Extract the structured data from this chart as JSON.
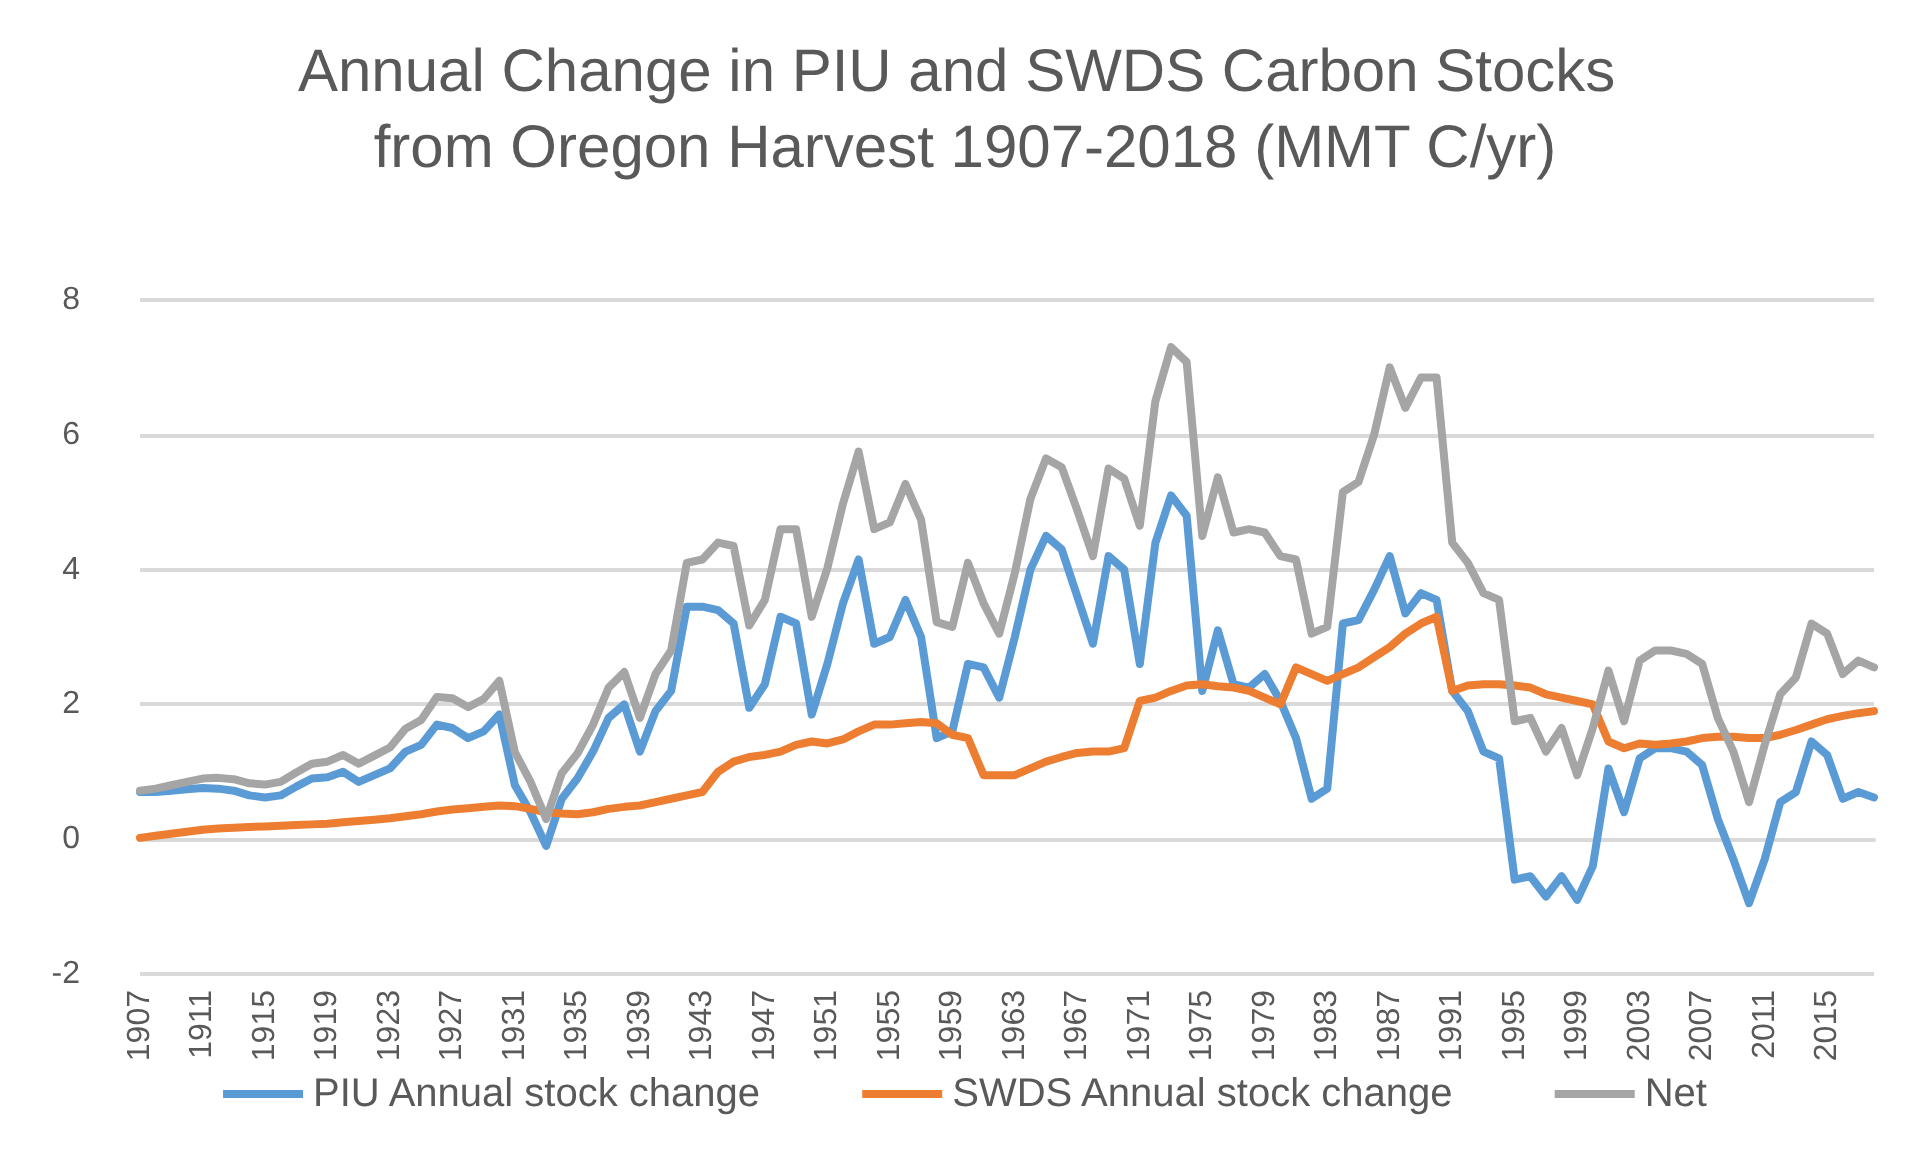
{
  "chart_data": {
    "type": "line",
    "title": "Annual Change in PIU and SWDS Carbon Stocks from Oregon Harvest 1907-2018 (MMT C/yr)",
    "categories": [
      "1907",
      null,
      null,
      null,
      "1911",
      null,
      null,
      null,
      "1915",
      null,
      null,
      null,
      "1919",
      null,
      null,
      null,
      "1923",
      null,
      null,
      null,
      "1927",
      null,
      null,
      null,
      "1931",
      null,
      null,
      null,
      "1935",
      null,
      null,
      null,
      "1939",
      null,
      null,
      null,
      "1943",
      null,
      null,
      null,
      "1947",
      null,
      null,
      null,
      "1951",
      null,
      null,
      null,
      "1955",
      null,
      null,
      null,
      "1959",
      null,
      null,
      null,
      "1963",
      null,
      null,
      null,
      "1967",
      null,
      null,
      null,
      "1971",
      null,
      null,
      null,
      "1975",
      null,
      null,
      null,
      "1979",
      null,
      null,
      null,
      "1983",
      null,
      null,
      null,
      "1987",
      null,
      null,
      null,
      "1991",
      null,
      null,
      null,
      "1995",
      null,
      null,
      null,
      "1999",
      null,
      null,
      null,
      "2003",
      null,
      null,
      null,
      "2007",
      null,
      null,
      null,
      "2011",
      null,
      null,
      null,
      "2015",
      null,
      null,
      null
    ],
    "series": [
      {
        "name": "PIU Annual stock change",
        "color": "#5b9bd5",
        "values": [
          0.7,
          0.7,
          0.72,
          0.74,
          0.76,
          0.75,
          0.72,
          0.65,
          0.62,
          0.65,
          0.78,
          0.9,
          0.92,
          1.0,
          0.85,
          0.95,
          1.05,
          1.3,
          1.4,
          1.7,
          1.65,
          1.5,
          1.6,
          1.85,
          0.8,
          0.4,
          -0.1,
          0.6,
          0.9,
          1.3,
          1.8,
          2.0,
          1.3,
          1.9,
          2.2,
          3.45,
          3.45,
          3.4,
          3.2,
          1.95,
          2.3,
          3.3,
          3.2,
          1.85,
          2.6,
          3.5,
          4.15,
          2.9,
          3.0,
          3.55,
          3.0,
          1.5,
          1.6,
          2.6,
          2.55,
          2.1,
          3.0,
          4.0,
          4.5,
          4.3,
          3.6,
          2.9,
          4.2,
          4.0,
          2.6,
          4.4,
          5.1,
          4.8,
          2.2,
          3.1,
          2.3,
          2.25,
          2.45,
          2.05,
          1.5,
          0.6,
          0.75,
          3.2,
          3.25,
          3.7,
          4.2,
          3.35,
          3.65,
          3.55,
          2.2,
          1.9,
          1.3,
          1.2,
          -0.6,
          -0.55,
          -0.85,
          -0.55,
          -0.9,
          -0.4,
          1.05,
          0.4,
          1.2,
          1.35,
          1.35,
          1.3,
          1.1,
          0.3,
          -0.3,
          -0.95,
          -0.3,
          0.55,
          0.7,
          1.45,
          1.25,
          0.6,
          0.7,
          0.62
        ]
      },
      {
        "name": "SWDS Annual stock change",
        "color": "#ed7d31",
        "values": [
          0.02,
          0.05,
          0.08,
          0.11,
          0.14,
          0.16,
          0.17,
          0.18,
          0.19,
          0.2,
          0.21,
          0.22,
          0.23,
          0.25,
          0.27,
          0.29,
          0.31,
          0.34,
          0.37,
          0.41,
          0.44,
          0.46,
          0.48,
          0.5,
          0.49,
          0.45,
          0.4,
          0.38,
          0.37,
          0.4,
          0.45,
          0.48,
          0.5,
          0.55,
          0.6,
          0.65,
          0.7,
          1.0,
          1.15,
          1.22,
          1.25,
          1.3,
          1.4,
          1.45,
          1.42,
          1.48,
          1.6,
          1.7,
          1.7,
          1.72,
          1.74,
          1.72,
          1.55,
          1.5,
          0.95,
          0.95,
          0.95,
          1.05,
          1.15,
          1.22,
          1.28,
          1.3,
          1.3,
          1.35,
          2.05,
          2.1,
          2.2,
          2.28,
          2.3,
          2.27,
          2.25,
          2.2,
          2.1,
          2.0,
          2.55,
          2.45,
          2.35,
          2.45,
          2.55,
          2.7,
          2.85,
          3.05,
          3.2,
          3.3,
          2.2,
          2.28,
          2.3,
          2.3,
          2.28,
          2.25,
          2.15,
          2.1,
          2.05,
          2.0,
          1.45,
          1.35,
          1.42,
          1.4,
          1.42,
          1.45,
          1.5,
          1.52,
          1.52,
          1.5,
          1.5,
          1.55,
          1.62,
          1.7,
          1.78,
          1.83,
          1.87,
          1.9
        ]
      },
      {
        "name": "Net",
        "color": "#a5a5a5",
        "values": [
          0.72,
          0.75,
          0.8,
          0.85,
          0.9,
          0.91,
          0.89,
          0.83,
          0.81,
          0.85,
          0.99,
          1.12,
          1.15,
          1.25,
          1.12,
          1.24,
          1.36,
          1.64,
          1.77,
          2.11,
          2.09,
          1.96,
          2.08,
          2.35,
          1.29,
          0.85,
          0.3,
          0.98,
          1.27,
          1.7,
          2.25,
          2.48,
          1.8,
          2.45,
          2.8,
          4.1,
          4.15,
          4.4,
          4.35,
          3.17,
          3.55,
          4.6,
          4.6,
          3.3,
          4.02,
          4.98,
          5.75,
          4.6,
          4.7,
          5.27,
          4.74,
          3.22,
          3.15,
          4.1,
          3.5,
          3.05,
          3.95,
          5.05,
          5.65,
          5.52,
          4.88,
          4.2,
          5.5,
          5.35,
          4.65,
          6.5,
          7.3,
          7.08,
          4.5,
          5.37,
          4.55,
          4.6,
          4.55,
          4.2,
          4.15,
          3.05,
          3.15,
          5.15,
          5.3,
          6.0,
          7.0,
          6.4,
          6.85,
          6.85,
          4.4,
          4.1,
          3.65,
          3.55,
          1.75,
          1.8,
          1.3,
          1.65,
          0.95,
          1.65,
          2.5,
          1.75,
          2.65,
          2.8,
          2.8,
          2.75,
          2.6,
          1.8,
          1.3,
          0.55,
          1.4,
          2.15,
          2.4,
          3.2,
          3.05,
          2.45,
          2.65,
          2.55
        ]
      }
    ],
    "ylim": [
      -2,
      8
    ],
    "yticks": [
      -2,
      0,
      2,
      4,
      6,
      8
    ],
    "grid": "y",
    "legend": "bottom",
    "marker": "none",
    "line_style": "solid"
  }
}
